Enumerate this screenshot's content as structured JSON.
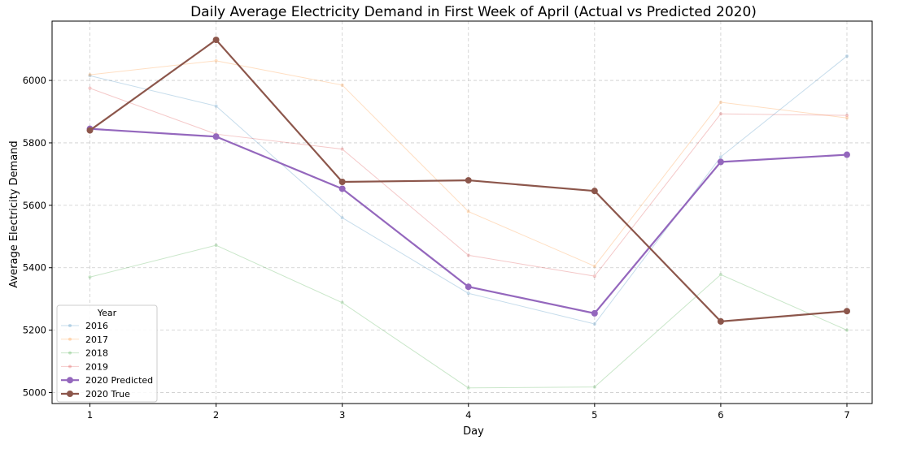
{
  "chart_data": {
    "type": "line",
    "title": "Daily Average Electricity Demand in First Week of April (Actual vs Predicted 2020)",
    "xlabel": "Day",
    "ylabel": "Average Electricity Demand",
    "x": [
      1,
      2,
      3,
      4,
      5,
      6,
      7
    ],
    "xlim": [
      0.7,
      7.2
    ],
    "ylim": [
      4965,
      6190
    ],
    "yticks": [
      5000,
      5200,
      5400,
      5600,
      5800,
      6000
    ],
    "grid": true,
    "legend": {
      "title": "Year",
      "placement": "lower-left"
    },
    "series": [
      {
        "name": "2016",
        "color": "#1f77b4",
        "alpha": 0.25,
        "width": 1,
        "marker": 2,
        "values": [
          6015,
          5918,
          5560,
          5318,
          5220,
          5755,
          6078
        ]
      },
      {
        "name": "2017",
        "color": "#ff7f0e",
        "alpha": 0.25,
        "width": 1,
        "marker": 2,
        "values": [
          6018,
          6063,
          5985,
          5580,
          5405,
          5930,
          5880
        ]
      },
      {
        "name": "2018",
        "color": "#2ca02c",
        "alpha": 0.25,
        "width": 1,
        "marker": 2,
        "values": [
          5370,
          5472,
          5288,
          5015,
          5018,
          5378,
          5200
        ]
      },
      {
        "name": "2019",
        "color": "#d62728",
        "alpha": 0.25,
        "width": 1,
        "marker": 2,
        "values": [
          5975,
          5828,
          5780,
          5440,
          5373,
          5893,
          5888
        ]
      },
      {
        "name": "2020 Predicted",
        "color": "#9467bd",
        "alpha": 1,
        "width": 2.2,
        "marker": 4,
        "values": [
          5845,
          5820,
          5653,
          5339,
          5254,
          5739,
          5762
        ]
      },
      {
        "name": "2020 True",
        "color": "#8c564b",
        "alpha": 1,
        "width": 2.2,
        "marker": 4,
        "values": [
          5840,
          6130,
          5675,
          5680,
          5646,
          5228,
          5261
        ]
      }
    ]
  }
}
